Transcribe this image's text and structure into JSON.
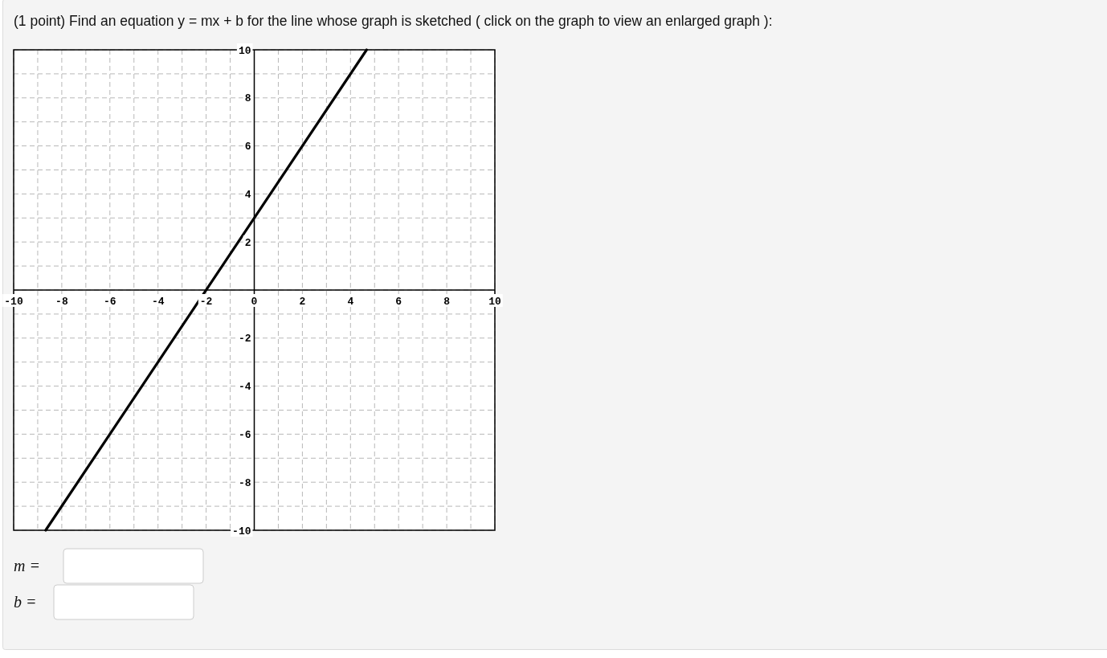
{
  "chart_data": {
    "type": "line",
    "title": "(1 point) Find an equation y = mx + b for the line whose graph is sketched ( click on the graph to view an enlarged graph ):",
    "xlim": [
      -10,
      10
    ],
    "ylim": [
      -10,
      10
    ],
    "xticks": [
      -10,
      {
        "value": -9,
        "label": null
      },
      -8,
      {
        "value": -7,
        "label": null
      },
      -6,
      {
        "value": -5,
        "label": null
      },
      -4,
      {
        "value": -3,
        "label": null
      },
      -2,
      {
        "value": -1,
        "label": null
      },
      0,
      {
        "value": 1,
        "label": null
      },
      2,
      {
        "value": 3,
        "label": null
      },
      4,
      {
        "value": 5,
        "label": null
      },
      6,
      {
        "value": 7,
        "label": null
      },
      8,
      {
        "value": 9,
        "label": null
      },
      10
    ],
    "yticks": [
      -10,
      {
        "value": -9,
        "label": null
      },
      -8,
      {
        "value": -7,
        "label": null
      },
      -6,
      {
        "value": -5,
        "label": null
      },
      -4,
      {
        "value": -3,
        "label": null
      },
      -2,
      {
        "value": -1,
        "label": null
      },
      {
        "value": 0,
        "label": null
      },
      {
        "value": 1,
        "label": null
      },
      2,
      {
        "value": 3,
        "label": null
      },
      4,
      {
        "value": 5,
        "label": null
      },
      6,
      {
        "value": 7,
        "label": null
      },
      8,
      {
        "value": 9,
        "label": null
      },
      10
    ],
    "grid": true,
    "series": [
      {
        "color": "#000000",
        "x": [
          -8.67,
          4.67
        ],
        "values": [
          -10,
          10
        ]
      }
    ],
    "annotations": [
      "m =",
      "b ="
    ]
  }
}
